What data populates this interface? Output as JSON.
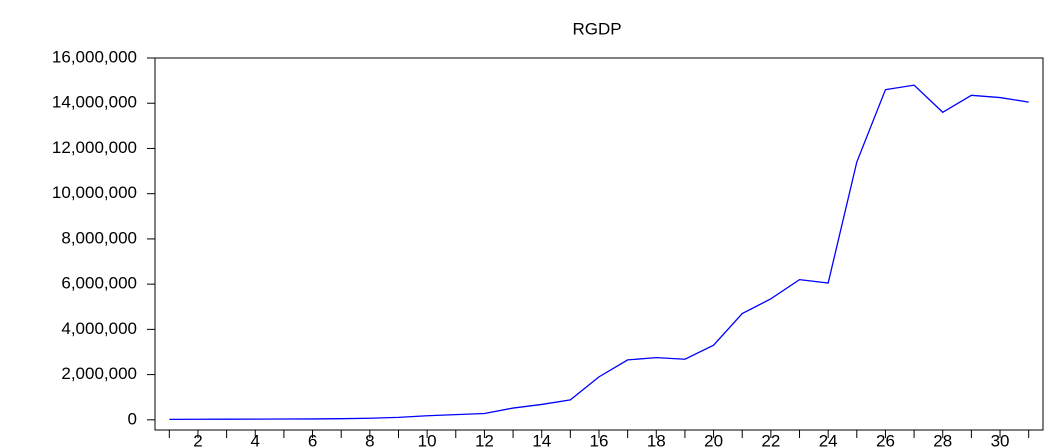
{
  "chart_data": {
    "type": "line",
    "title": "RGDP",
    "x": [
      1,
      2,
      3,
      4,
      5,
      6,
      7,
      8,
      9,
      10,
      11,
      12,
      13,
      14,
      15,
      16,
      17,
      18,
      19,
      20,
      21,
      22,
      23,
      24,
      25,
      26,
      27,
      28,
      29,
      30,
      31
    ],
    "series": [
      {
        "name": "RGDP",
        "color": "#0000ff",
        "values": [
          20000,
          25000,
          28000,
          32000,
          36000,
          40000,
          50000,
          70000,
          110000,
          180000,
          230000,
          280000,
          520000,
          680000,
          880000,
          1900000,
          2650000,
          2750000,
          2680000,
          3300000,
          4700000,
          5350000,
          6200000,
          6050000,
          11400000,
          14600000,
          14800000,
          13600000,
          14350000,
          14250000,
          14050000
        ]
      }
    ],
    "xlim": [
      0.5,
      31.5
    ],
    "xticks": [
      2,
      4,
      6,
      8,
      10,
      12,
      14,
      16,
      18,
      20,
      22,
      24,
      26,
      28,
      30
    ],
    "ylim": [
      -450000,
      16000000
    ],
    "yticks": [
      0,
      {
        "value": 2000000,
        "label": "2,000,000"
      },
      {
        "value": 4000000,
        "label": "4,000,000"
      },
      {
        "value": 6000000,
        "label": "6,000,000"
      },
      {
        "value": 8000000,
        "label": "8,000,000"
      },
      {
        "value": 10000000,
        "label": "10,000,000"
      },
      {
        "value": 12000000,
        "label": "12,000,000"
      },
      {
        "value": 14000000,
        "label": "14,000,000"
      },
      {
        "value": 16000000,
        "label": "16,000,000"
      }
    ],
    "grid": false
  }
}
